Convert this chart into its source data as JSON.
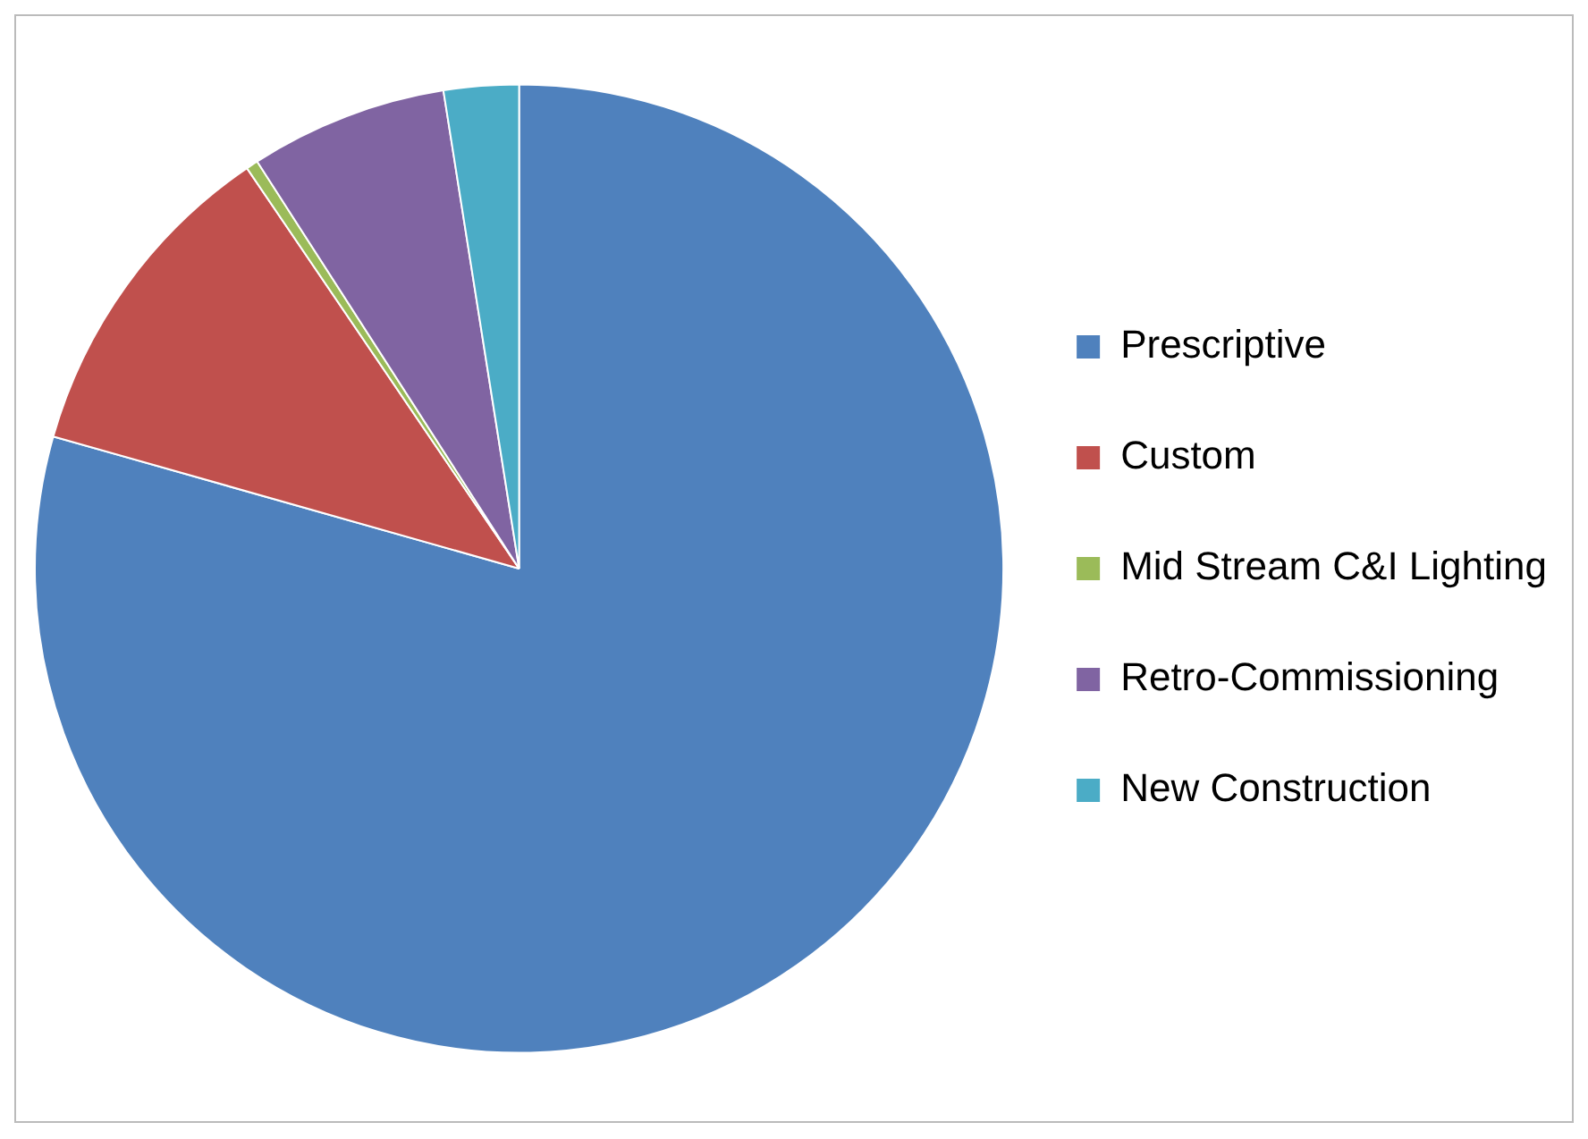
{
  "chart_data": {
    "type": "pie",
    "categories": [
      "Prescriptive",
      "Custom",
      "Mid Stream C&I Lighting",
      "Retro-Commissioning",
      "New Construction"
    ],
    "values": [
      79.4,
      11.1,
      0.4,
      6.6,
      2.5
    ],
    "colors": [
      "#4f81bd",
      "#c0504d",
      "#9bbb59",
      "#8064a2",
      "#4bacc6"
    ],
    "legend": "right"
  }
}
